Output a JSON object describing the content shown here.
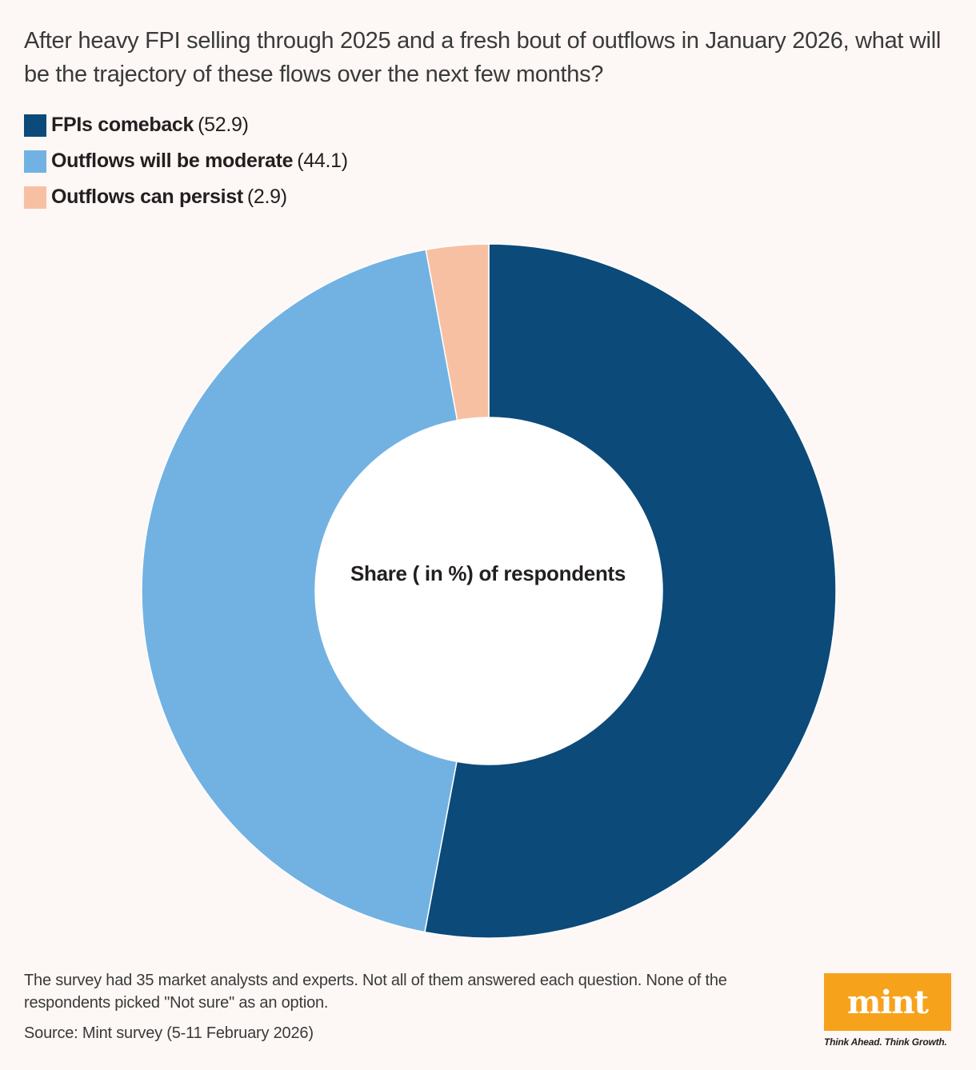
{
  "header": {
    "title": "After heavy FPI selling through 2025 and a fresh bout of outflows in January 2026, what will be the trajectory of these flows over the next few months?"
  },
  "legend": [
    {
      "label": "FPIs comeback",
      "value": "52.9",
      "color": "#0c4a7a"
    },
    {
      "label": "Outflows will be moderate",
      "value": "44.1",
      "color": "#72b2e2"
    },
    {
      "label": "Outflows can persist",
      "value": "2.9",
      "color": "#f8c0a2"
    }
  ],
  "chart_data": {
    "type": "pie",
    "donut": true,
    "center_label": "Share ( in %) of respondents",
    "categories": [
      "FPIs comeback",
      "Outflows will be moderate",
      "Outflows can persist"
    ],
    "values": [
      52.9,
      44.1,
      2.9
    ],
    "colors": [
      "#0c4a7a",
      "#72b2e2",
      "#f8c0a2"
    ],
    "legend_position": "top-left"
  },
  "footer": {
    "note": "The survey had 35 market analysts and experts. Not all of them answered each question. None of the respondents picked \"Not sure\" as an option.",
    "source": "Source: Mint survey (5-11 February 2026)"
  },
  "brand": {
    "logo_text": "mint",
    "tagline": "Think Ahead. Think Growth.",
    "logo_color": "#f7a21b"
  }
}
